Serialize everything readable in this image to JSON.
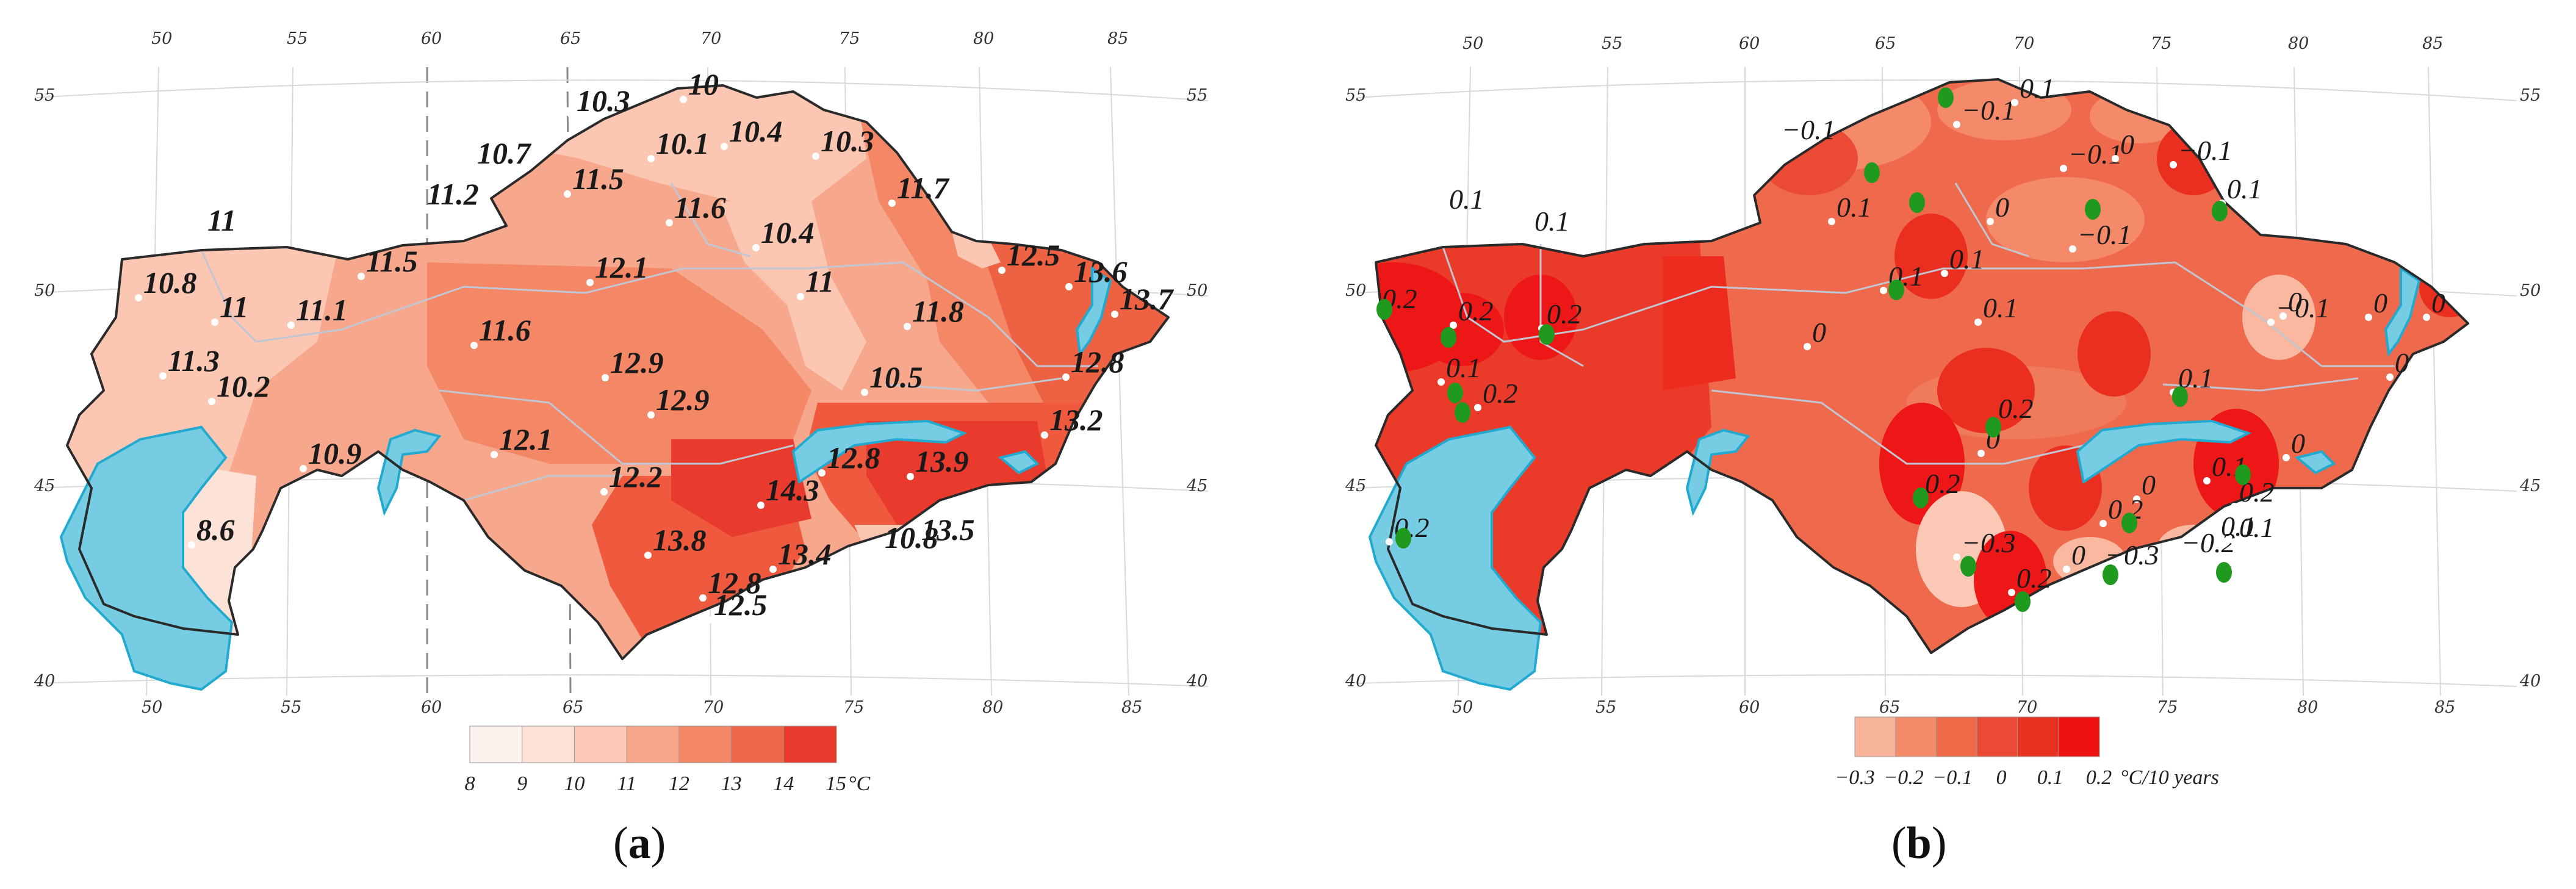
{
  "panel_a": {
    "caption_letter": "a",
    "unit": "°C",
    "legend_ticks": [
      "8",
      "9",
      "10",
      "11",
      "12",
      "13",
      "14",
      "15"
    ],
    "legend_colors": [
      "#fdf1ee",
      "#fde0d6",
      "#fbc8b5",
      "#f8a78c",
      "#f48766",
      "#ef6548",
      "#e93a2e"
    ],
    "lon_labels_top": [
      "50",
      "55",
      "60",
      "65",
      "70",
      "75",
      "80",
      "85"
    ],
    "lon_labels_bottom": [
      "50",
      "55",
      "60",
      "65",
      "70",
      "75",
      "80",
      "85"
    ],
    "lat_labels_left": [
      "55",
      "50",
      "45",
      "40"
    ],
    "lat_labels_right": [
      "55",
      "50",
      "45",
      "40"
    ],
    "values": [
      "10",
      "10.3",
      "10.7",
      "10.1",
      "10.4",
      "10.3",
      "11.2",
      "11.5",
      "11.6",
      "11.7",
      "11",
      "10.4",
      "10.8",
      "11",
      "11.1",
      "11.5",
      "12.1",
      "11",
      "12.5",
      "13.6",
      "11.8",
      "13.7",
      "11.3",
      "10.2",
      "11.6",
      "12.9",
      "10.5",
      "12.8",
      "12.9",
      "12.1",
      "12.8",
      "13.2",
      "10.9",
      "12.2",
      "14.3",
      "13.9",
      "8.6",
      "13.5",
      "10.8",
      "13.8",
      "13.4",
      "12.8",
      "12.5"
    ]
  },
  "panel_b": {
    "caption_letter": "b",
    "unit": "°C/10 years",
    "legend_ticks": [
      "−0.3",
      "−0.2",
      "−0.1",
      "0",
      "0.1",
      "0.2"
    ],
    "legend_colors": [
      "#f7b49b",
      "#f58a69",
      "#f06a4a",
      "#eb4a35",
      "#e8311f",
      "#ee1111"
    ],
    "lon_labels_top": [
      "50",
      "55",
      "60",
      "65",
      "70",
      "75",
      "80",
      "85"
    ],
    "lon_labels_bottom": [
      "50",
      "55",
      "60",
      "65",
      "70",
      "75",
      "80",
      "85"
    ],
    "lat_labels_left": [
      "55",
      "50",
      "45",
      "40"
    ],
    "lat_labels_right": [
      "55",
      "50",
      "45",
      "40"
    ],
    "values": [
      "−0.1",
      "0.1",
      "−0.1",
      "−0.1",
      "0",
      "−0.1",
      "0.1",
      "0.1",
      "0",
      "0.1",
      "0.1",
      "0.1",
      "−0.1",
      "0.1",
      "0.2",
      "0.2",
      "0.2",
      "0",
      "0",
      "0",
      "−0.1",
      "0.1",
      "0",
      "0.1",
      "0.2",
      "0.1",
      "0.2",
      "0",
      "0",
      "0.2",
      "0.1",
      "0",
      "0",
      "0.2",
      "0.2",
      "0.2",
      "0.1",
      "−0.3",
      "0",
      "−0.3",
      "−0.2",
      "0.2",
      "0.1"
    ]
  }
}
